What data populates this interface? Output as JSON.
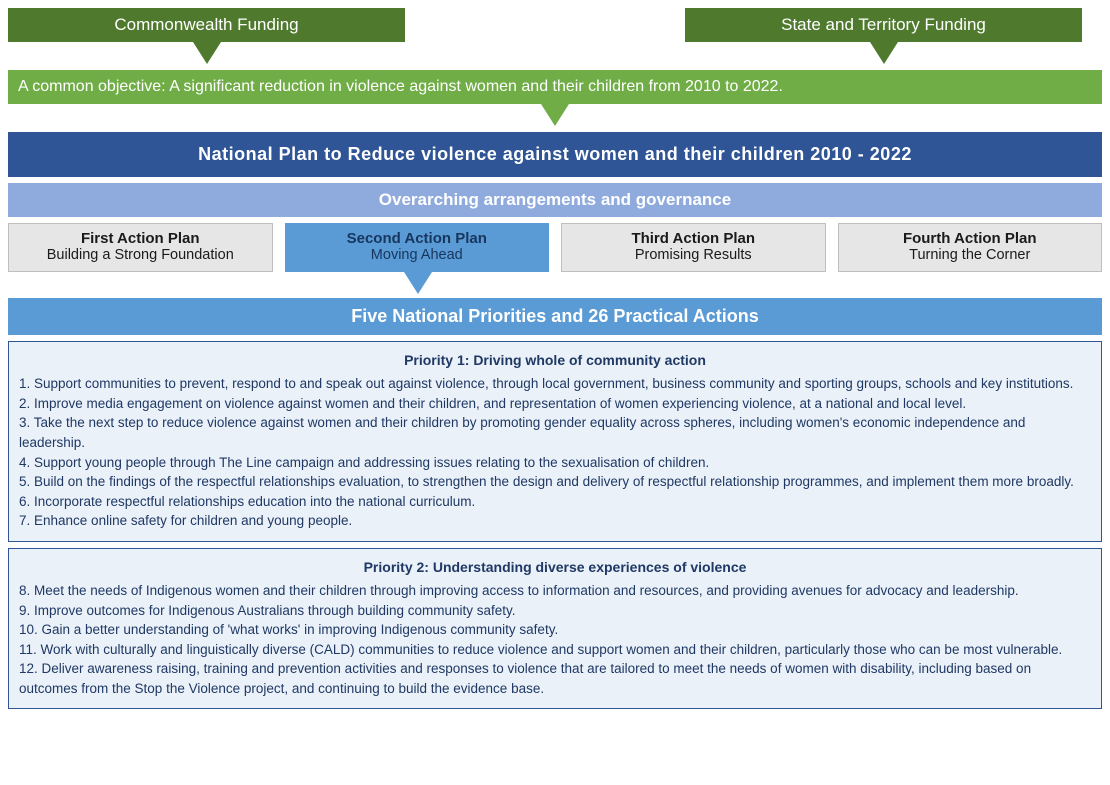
{
  "colors": {
    "dark_green": "#4f7a2d",
    "dark_green_text": "#ffffff",
    "light_green": "#70ad47",
    "light_green_text": "#ffffff",
    "dark_blue": "#2f5597",
    "dark_blue_text": "#ffffff",
    "mid_blue": "#8faadc",
    "mid_blue_text": "#ffffff",
    "action_gray_bg": "#e7e6e6",
    "action_gray_text": "#1a1a1a",
    "action_blue_bg": "#5b9bd5",
    "action_blue_text": "#17365d",
    "priorities_header_bg": "#5b9bd5",
    "priorities_header_text": "#ffffff",
    "priority_box_bg": "#eaf1f8",
    "priority_box_border": "#2f5597",
    "priority_text": "#1f3864"
  },
  "funding": {
    "left": "Commonwealth Funding",
    "right": "State and Territory Funding"
  },
  "objective": "A common objective: A significant reduction in violence against women and their children from 2010 to 2022.",
  "plan_title": "National Plan to Reduce violence against women and their children 2010 - 2022",
  "governance": "Overarching arrangements and governance",
  "action_plans": [
    {
      "title": "First Action Plan",
      "sub": "Building a Strong Foundation",
      "active": false
    },
    {
      "title": "Second Action Plan",
      "sub": "Moving Ahead",
      "active": true
    },
    {
      "title": "Third Action Plan",
      "sub": "Promising Results",
      "active": false
    },
    {
      "title": "Fourth Action Plan",
      "sub": "Turning the Corner",
      "active": false
    }
  ],
  "priorities_header": "Five National Priorities and 26 Practical Actions",
  "priorities": [
    {
      "title": "Priority 1: Driving whole of community action",
      "items": [
        "1. Support communities to prevent, respond to and speak out against violence, through local government, business community and sporting groups, schools and key institutions.",
        "2. Improve media engagement on violence against women and their children, and representation of women experiencing violence, at a national and local level.",
        "3. Take the next step to reduce violence against women and their children by promoting gender equality across spheres, including women's economic independence and leadership.",
        "4. Support young people through The Line campaign and addressing issues relating to the sexualisation of children.",
        "5. Build on the findings of the respectful relationships evaluation, to strengthen the design and delivery of respectful relationship programmes, and implement them more broadly.",
        "6. Incorporate respectful relationships education into the national curriculum.",
        "7. Enhance online safety for children and young people."
      ]
    },
    {
      "title": "Priority 2: Understanding diverse experiences of violence",
      "items": [
        "8. Meet the needs of Indigenous women and their children through improving access to information and resources, and providing avenues for advocacy and leadership.",
        "9. Improve outcomes for Indigenous Australians through building community safety.",
        "10. Gain a better understanding of 'what works' in improving Indigenous community safety.",
        "11. Work with culturally and linguistically diverse (CALD) communities to reduce violence and support women and their children, particularly those who can be most vulnerable.",
        "12. Deliver awareness raising, training and prevention activities and responses to violence that are tailored to meet the needs of women with disability, including based on outcomes from the Stop the Violence project, and continuing to build the evidence base."
      ]
    }
  ]
}
